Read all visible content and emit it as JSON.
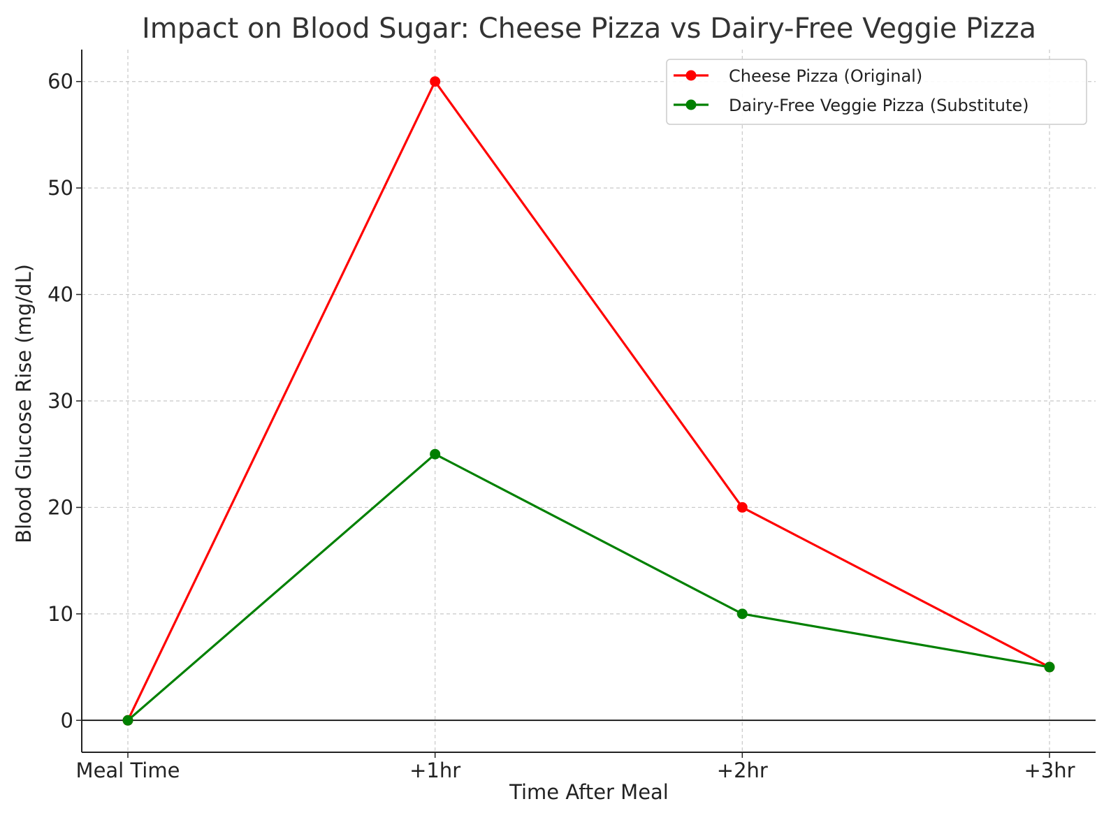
{
  "chart_data": {
    "type": "line",
    "title": "Impact on Blood Sugar: Cheese Pizza vs Dairy-Free Veggie Pizza",
    "xlabel": "Time After Meal",
    "ylabel": "Blood Glucose Rise (mg/dL)",
    "categories": [
      "Meal Time",
      "+1hr",
      "+2hr",
      "+3hr"
    ],
    "y_ticks": [
      0,
      10,
      20,
      30,
      40,
      50,
      60
    ],
    "ylim": [
      -3,
      63
    ],
    "grid": true,
    "legend_position": "top-right",
    "series": [
      {
        "name": "Cheese Pizza (Original)",
        "color": "#ff0000",
        "values": [
          0,
          60,
          20,
          5
        ]
      },
      {
        "name": "Dairy-Free Veggie Pizza (Substitute)",
        "color": "#008000",
        "values": [
          0,
          25,
          10,
          5
        ]
      }
    ]
  }
}
